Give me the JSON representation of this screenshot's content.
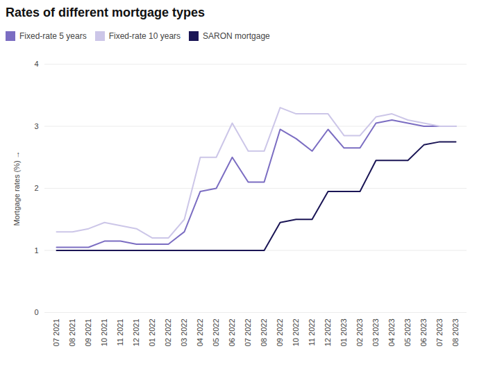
{
  "chart_data": {
    "type": "line",
    "title": "Rates of different mortgage types",
    "ylabel": "Mortgage rates (%)",
    "categories": [
      "07 2021",
      "08 2021",
      "09 2021",
      "10 2021",
      "11 2021",
      "12 2021",
      "01 2022",
      "02 2022",
      "03 2022",
      "04 2022",
      "05 2022",
      "06 2022",
      "07 2022",
      "08 2022",
      "09 2022",
      "10 2022",
      "11 2022",
      "12 2022",
      "01 2023",
      "02 2023",
      "03 2023",
      "04 2023",
      "05 2023",
      "06 2023",
      "07 2023",
      "08 2023"
    ],
    "series": [
      {
        "name": "Fixed-rate 5 years",
        "color": "#7b6dc2",
        "values": [
          1.05,
          1.05,
          1.05,
          1.15,
          1.15,
          1.1,
          1.1,
          1.1,
          1.3,
          1.95,
          2.0,
          2.5,
          2.1,
          2.1,
          2.95,
          2.8,
          2.6,
          2.95,
          2.65,
          2.65,
          3.05,
          3.1,
          3.05,
          3.0,
          3.0,
          3.0
        ]
      },
      {
        "name": "Fixed-rate 10 years",
        "color": "#ccc6e8",
        "values": [
          1.3,
          1.3,
          1.35,
          1.45,
          1.4,
          1.35,
          1.2,
          1.2,
          1.5,
          2.5,
          2.5,
          3.05,
          2.6,
          2.6,
          3.3,
          3.2,
          3.2,
          3.2,
          2.85,
          2.85,
          3.15,
          3.2,
          3.1,
          3.05,
          3.0,
          3.0
        ]
      },
      {
        "name": "SARON mortgage",
        "color": "#1a1555",
        "values": [
          1.0,
          1.0,
          1.0,
          1.0,
          1.0,
          1.0,
          1.0,
          1.0,
          1.0,
          1.0,
          1.0,
          1.0,
          1.0,
          1.0,
          1.45,
          1.5,
          1.5,
          1.95,
          1.95,
          1.95,
          2.45,
          2.45,
          2.45,
          2.7,
          2.75,
          2.75
        ]
      }
    ],
    "ylim": [
      0,
      4
    ],
    "yticks": [
      0,
      1,
      2,
      3,
      4
    ],
    "grid": true,
    "legend": "upper left"
  }
}
